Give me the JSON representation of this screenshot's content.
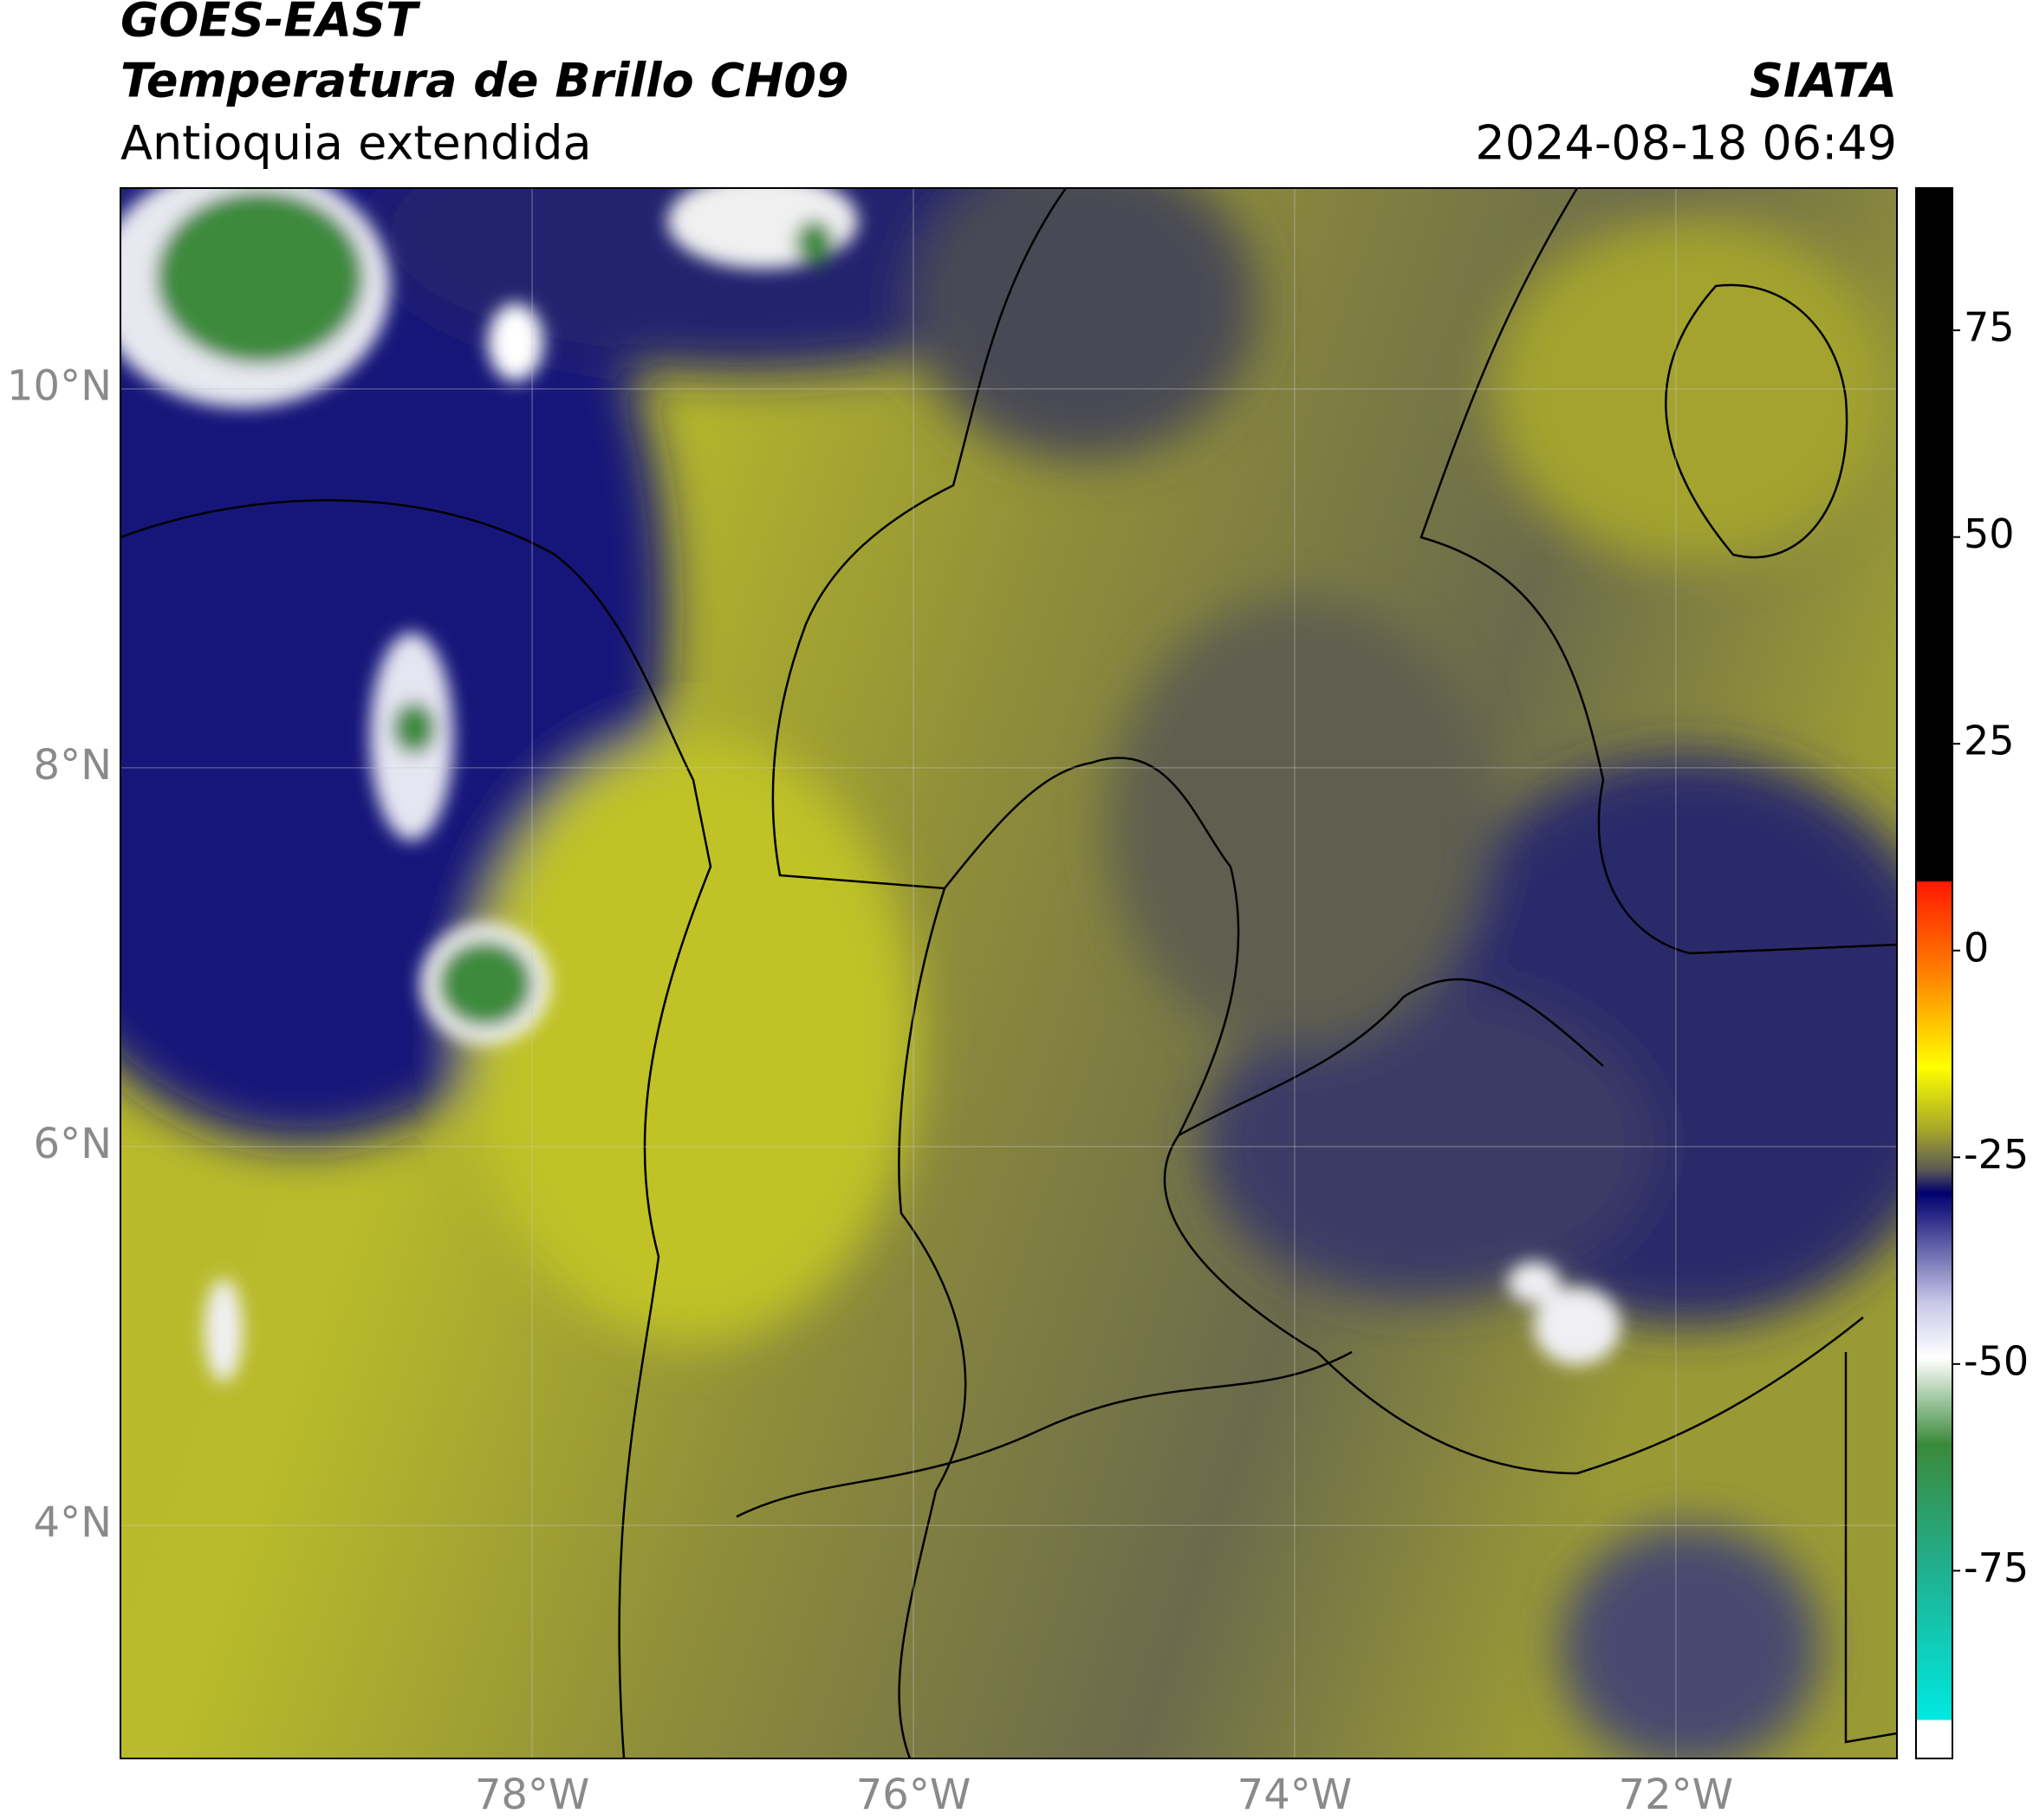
{
  "header": {
    "title": "GOES-EAST",
    "subtitle": "Temperatura de Brillo CH09",
    "region": "Antioquia extendida",
    "source": "SIATA",
    "datetime": "2024-08-18 06:49"
  },
  "map": {
    "xlim": [
      -80.16,
      -70.84
    ],
    "ylim": [
      2.77,
      11.06
    ],
    "xticks": [
      {
        "value": -78,
        "label": "78°W"
      },
      {
        "value": -76,
        "label": "76°W"
      },
      {
        "value": -74,
        "label": "74°W"
      },
      {
        "value": -72,
        "label": "72°W"
      }
    ],
    "yticks": [
      {
        "value": 10,
        "label": "10°N"
      },
      {
        "value": 8,
        "label": "8°N"
      },
      {
        "value": 6,
        "label": "6°N"
      },
      {
        "value": 4,
        "label": "4°N"
      }
    ],
    "grid": true
  },
  "colorbar": {
    "lim": [
      -97.7,
      92.2
    ],
    "ticks": [
      75,
      50,
      25,
      0,
      -25,
      -50,
      -75
    ]
  }
}
